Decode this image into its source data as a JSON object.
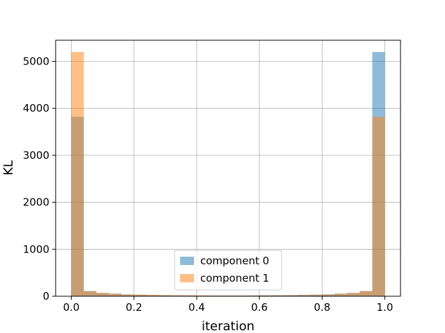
{
  "chart_data": {
    "type": "histogram",
    "title": "",
    "xlabel": "iteration",
    "ylabel": "KL",
    "xlim": [
      -0.05,
      1.05
    ],
    "ylim": [
      0,
      5450
    ],
    "grid": true,
    "legend_position": "lower center",
    "x_ticks": [
      "0.0",
      "0.2",
      "0.4",
      "0.6",
      "0.8",
      "1.0"
    ],
    "y_ticks": [
      "0",
      "1000",
      "2000",
      "3000",
      "4000",
      "5000"
    ],
    "bin_edges": [
      0.0,
      0.04,
      0.08,
      0.12,
      0.16,
      0.2,
      0.24,
      0.28,
      0.32,
      0.36,
      0.4,
      0.44,
      0.48,
      0.52,
      0.56,
      0.6,
      0.64,
      0.68,
      0.72,
      0.76,
      0.8,
      0.84,
      0.88,
      0.92,
      0.96,
      1.0
    ],
    "series": [
      {
        "name": "component 0",
        "color": "#1f77b4",
        "alpha": 0.5,
        "values": [
          3820,
          110,
          70,
          55,
          35,
          30,
          25,
          22,
          20,
          18,
          15,
          15,
          15,
          15,
          18,
          20,
          22,
          25,
          30,
          35,
          40,
          55,
          70,
          110,
          5200
        ]
      },
      {
        "name": "component 1",
        "color": "#ff7f0e",
        "alpha": 0.5,
        "values": [
          5200,
          110,
          70,
          55,
          40,
          35,
          30,
          25,
          22,
          20,
          18,
          15,
          15,
          15,
          15,
          18,
          20,
          22,
          25,
          30,
          35,
          55,
          70,
          110,
          3820
        ]
      }
    ]
  }
}
